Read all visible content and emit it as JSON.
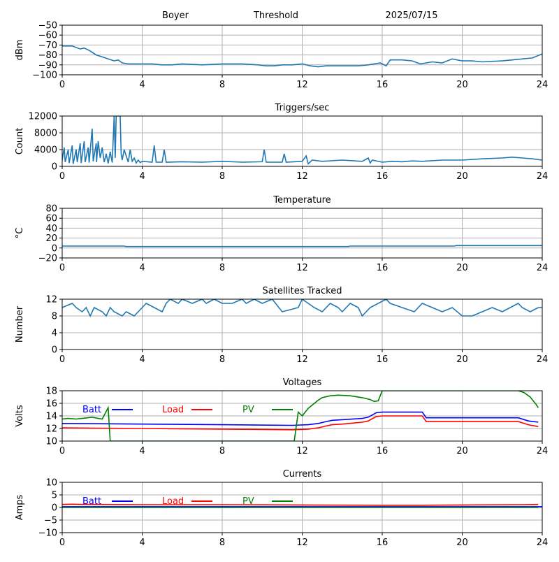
{
  "header": {
    "site": "Boyer",
    "mode": "Threshold",
    "date": "2025/07/15"
  },
  "colors": {
    "series_default": "#1f77b4",
    "batt": "#0000ff",
    "load": "#ff0000",
    "pv": "#008000",
    "grid": "#b0b0b0"
  },
  "chart_data": [
    {
      "id": "signal",
      "type": "line",
      "title": "",
      "xlabel": "",
      "ylabel": "dBm",
      "xlim": [
        0,
        24
      ],
      "ylim": [
        -100,
        -50
      ],
      "xticks": [
        0,
        4,
        8,
        12,
        16,
        20,
        24
      ],
      "yticks": [
        -100,
        -90,
        -80,
        -70,
        -60,
        -50
      ],
      "grid": true,
      "series": [
        {
          "x": [
            0,
            0.5,
            0.9,
            1.1,
            1.4,
            1.7,
            2.0,
            2.3,
            2.6,
            2.8,
            3.0,
            3.3,
            3.6,
            4.0,
            4.5,
            5.0,
            5.5,
            6.0,
            7.0,
            8.0,
            9.0,
            9.8,
            10.2,
            10.6,
            11.0,
            11.5,
            12.0,
            12.4,
            12.8,
            13.2,
            14.0,
            14.8,
            15.3,
            15.6,
            15.9,
            16.2,
            16.4,
            17.0,
            17.5,
            17.9,
            18.5,
            19.0,
            19.5,
            20.0,
            20.5,
            21.0,
            22.0,
            23.0,
            23.5,
            24.0
          ],
          "y": [
            -71,
            -71,
            -74,
            -73,
            -76,
            -80,
            -82,
            -84,
            -86,
            -85,
            -88,
            -89,
            -89,
            -89,
            -89,
            -90,
            -90,
            -89,
            -90,
            -89,
            -89,
            -90,
            -91,
            -91,
            -90,
            -90,
            -89,
            -91,
            -92,
            -91,
            -91,
            -91,
            -90,
            -89,
            -88,
            -91,
            -85,
            -85,
            -86,
            -89,
            -87,
            -88,
            -84,
            -86,
            -86,
            -87,
            -86,
            -84,
            -83,
            -79
          ]
        }
      ]
    },
    {
      "id": "triggers",
      "type": "line",
      "title": "Triggers/sec",
      "xlabel": "",
      "ylabel": "Count",
      "xlim": [
        0,
        24
      ],
      "ylim": [
        0,
        12000
      ],
      "xticks": [
        0,
        4,
        8,
        12,
        16,
        20,
        24
      ],
      "yticks": [
        0,
        4000,
        8000,
        12000
      ],
      "grid": true,
      "series": [
        {
          "x": [
            0,
            0.1,
            0.15,
            0.3,
            0.35,
            0.5,
            0.55,
            0.7,
            0.75,
            0.9,
            0.95,
            1.1,
            1.15,
            1.3,
            1.35,
            1.5,
            1.55,
            1.7,
            1.72,
            1.8,
            1.9,
            2.0,
            2.1,
            2.2,
            2.3,
            2.4,
            2.5,
            2.6,
            2.65,
            2.7,
            2.8,
            2.9,
            2.95,
            3.0,
            3.1,
            3.3,
            3.4,
            3.5,
            3.6,
            3.7,
            3.8,
            3.9,
            4.0,
            4.5,
            4.6,
            4.7,
            5.0,
            5.1,
            5.2,
            6.0,
            7.0,
            8.0,
            9.0,
            10.0,
            10.1,
            10.2,
            11.0,
            11.1,
            11.2,
            12.0,
            12.2,
            12.3,
            12.5,
            13.0,
            14.0,
            15.0,
            15.3,
            15.4,
            15.5,
            16.0,
            16.5,
            17.0,
            17.5,
            18.0,
            19.0,
            20.0,
            21.0,
            22.0,
            22.5,
            23.0,
            23.5,
            24.0
          ],
          "y": [
            1500,
            4500,
            1000,
            4000,
            800,
            5000,
            600,
            4000,
            1000,
            5500,
            800,
            6000,
            1000,
            4500,
            900,
            9000,
            1200,
            5500,
            1000,
            6000,
            2000,
            4500,
            1000,
            3000,
            700,
            3500,
            900,
            12000,
            2000,
            12000,
            12000,
            12000,
            3000,
            1500,
            4000,
            1000,
            4000,
            1200,
            2000,
            800,
            1500,
            900,
            1200,
            1000,
            5000,
            1000,
            1000,
            4000,
            1000,
            1100,
            1000,
            1200,
            1000,
            1100,
            4000,
            1000,
            1000,
            3000,
            1000,
            1200,
            2500,
            600,
            1500,
            1200,
            1500,
            1200,
            2000,
            800,
            1500,
            1000,
            1200,
            1100,
            1300,
            1200,
            1500,
            1500,
            1800,
            2000,
            2200,
            2000,
            1800,
            1500
          ]
        }
      ]
    },
    {
      "id": "temperature",
      "type": "line",
      "title": "Temperature",
      "xlabel": "",
      "ylabel": "°C",
      "xlim": [
        0,
        24
      ],
      "ylim": [
        -20,
        80
      ],
      "xticks": [
        0,
        4,
        8,
        12,
        16,
        20,
        24
      ],
      "yticks": [
        -20,
        0,
        20,
        40,
        60,
        80
      ],
      "grid": true,
      "series": [
        {
          "x": [
            0,
            3.1,
            3.2,
            14.3,
            14.4,
            19.6,
            19.7,
            24
          ],
          "y": [
            4,
            4,
            3,
            3,
            4,
            4,
            5,
            5
          ]
        }
      ]
    },
    {
      "id": "satellites",
      "type": "line",
      "title": "Satellites Tracked",
      "xlabel": "",
      "ylabel": "Number",
      "xlim": [
        0,
        24
      ],
      "ylim": [
        0,
        12
      ],
      "xticks": [
        0,
        4,
        8,
        12,
        16,
        20,
        24
      ],
      "yticks": [
        0,
        4,
        8,
        12
      ],
      "grid": true,
      "series": [
        {
          "x": [
            0,
            0.5,
            0.7,
            1.0,
            1.2,
            1.4,
            1.6,
            2.0,
            2.2,
            2.4,
            2.6,
            3.0,
            3.2,
            3.6,
            3.8,
            4.0,
            4.2,
            4.6,
            5.0,
            5.2,
            5.4,
            5.8,
            6.0,
            6.5,
            7.0,
            7.2,
            7.6,
            8.0,
            8.5,
            9.0,
            9.2,
            9.6,
            10.0,
            10.5,
            11.0,
            11.8,
            12.0,
            12.3,
            12.6,
            13.0,
            13.4,
            13.8,
            14.0,
            14.4,
            14.8,
            15.0,
            15.4,
            15.8,
            16.2,
            16.4,
            17.0,
            17.6,
            18.0,
            18.5,
            19.0,
            19.5,
            20.0,
            20.5,
            21.0,
            21.5,
            22.0,
            22.4,
            22.8,
            23.0,
            23.4,
            23.8,
            24.0
          ],
          "y": [
            10,
            11,
            10,
            9,
            10,
            8,
            10,
            9,
            8,
            10,
            9,
            8,
            9,
            8,
            9,
            10,
            11,
            10,
            9,
            11,
            12,
            11,
            12,
            11,
            12,
            11,
            12,
            11,
            11,
            12,
            11,
            12,
            11,
            12,
            9,
            10,
            12,
            11,
            10,
            9,
            11,
            10,
            9,
            11,
            10,
            8,
            10,
            11,
            12,
            11,
            10,
            9,
            11,
            10,
            9,
            10,
            8,
            8,
            9,
            10,
            9,
            10,
            11,
            10,
            9,
            10,
            10
          ]
        }
      ]
    },
    {
      "id": "voltages",
      "type": "line",
      "title": "Voltages",
      "xlabel": "",
      "ylabel": "Volts",
      "xlim": [
        0,
        24
      ],
      "ylim": [
        10,
        18
      ],
      "xticks": [
        0,
        4,
        8,
        12,
        16,
        20,
        24
      ],
      "yticks": [
        10,
        12,
        14,
        16,
        18
      ],
      "grid": true,
      "legend": "top-left",
      "series": [
        {
          "name": "Batt",
          "x": [
            0,
            4,
            8,
            11.5,
            12.3,
            12.8,
            13.2,
            13.5,
            14.0,
            15.0,
            15.3,
            15.7,
            16.0,
            17.0,
            18.0,
            18.2,
            20.0,
            22.8,
            23.3,
            23.8
          ],
          "y": [
            12.8,
            12.7,
            12.6,
            12.5,
            12.6,
            12.8,
            13.1,
            13.3,
            13.4,
            13.6,
            13.8,
            14.5,
            14.6,
            14.6,
            14.6,
            13.7,
            13.7,
            13.7,
            13.2,
            13.0
          ]
        },
        {
          "name": "Load",
          "x": [
            0,
            4,
            8,
            11.5,
            12.3,
            12.8,
            13.2,
            13.5,
            14.0,
            15.0,
            15.3,
            15.7,
            16.0,
            17.0,
            18.0,
            18.2,
            20.0,
            22.8,
            23.3,
            23.8
          ],
          "y": [
            12.1,
            12.0,
            11.9,
            11.8,
            11.9,
            12.1,
            12.4,
            12.6,
            12.7,
            13.0,
            13.2,
            13.9,
            14.0,
            14.0,
            14.0,
            13.1,
            13.1,
            13.1,
            12.6,
            12.3
          ]
        },
        {
          "name": "PV",
          "x": [
            0,
            0.3,
            0.7,
            1.0,
            1.5,
            1.8,
            2.0,
            2.3,
            2.4,
            11.6,
            11.8,
            12.0,
            12.3,
            12.8,
            13.0,
            13.4,
            13.8,
            14.4,
            15.0,
            15.4,
            15.6,
            15.8,
            16.0,
            22.8,
            23.1,
            23.4,
            23.7,
            23.8
          ],
          "y": [
            13.5,
            13.6,
            13.5,
            13.6,
            13.8,
            13.6,
            13.5,
            15.3,
            10.0,
            10.0,
            14.6,
            14.0,
            15.2,
            16.5,
            16.9,
            17.2,
            17.3,
            17.2,
            16.9,
            16.6,
            16.3,
            16.4,
            18.0,
            18.0,
            17.7,
            17.0,
            15.8,
            15.3
          ]
        }
      ]
    },
    {
      "id": "currents",
      "type": "line",
      "title": "Currents",
      "xlabel": "",
      "ylabel": "Amps",
      "xlim": [
        0,
        24
      ],
      "ylim": [
        -10,
        10
      ],
      "xticks": [
        0,
        4,
        8,
        12,
        16,
        20,
        24
      ],
      "yticks": [
        -10,
        -5,
        0,
        5,
        10
      ],
      "grid": true,
      "legend": "top-left",
      "series": [
        {
          "name": "Batt",
          "x": [
            0,
            24
          ],
          "y": [
            0.3,
            0.3
          ]
        },
        {
          "name": "Load",
          "x": [
            0,
            0.5,
            1.0,
            4.0,
            8.0,
            12.0,
            16.0,
            18.0,
            20.0,
            23.0,
            23.8
          ],
          "y": [
            1.2,
            1.3,
            1.2,
            1.1,
            1.1,
            1.0,
            0.9,
            0.9,
            1.0,
            1.1,
            1.2
          ]
        },
        {
          "name": "PV",
          "x": [
            0,
            23.8
          ],
          "y": [
            0.0,
            0.0
          ]
        }
      ]
    }
  ]
}
